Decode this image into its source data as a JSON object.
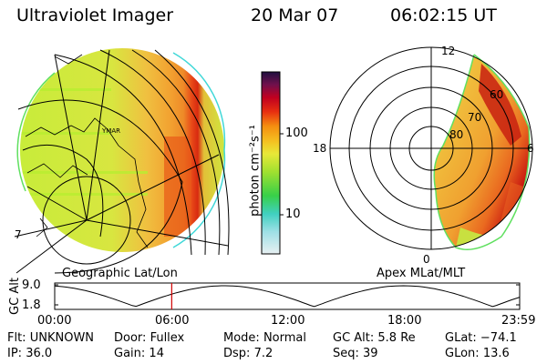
{
  "header": {
    "title": "Ultraviolet Imager",
    "date": "20 Mar 07",
    "time": "06:02:15 UT"
  },
  "left_panel": {
    "caption": "Geographic Lat/Lon",
    "map_label": "YMAR",
    "edge_label": "7"
  },
  "colorbar": {
    "unit_label": "photon cm⁻²s⁻¹",
    "ticks": [
      "100",
      "10"
    ]
  },
  "right_panel": {
    "caption": "Apex MLat/MLT",
    "mlt_labels": {
      "top": "12",
      "left": "18",
      "right": "6",
      "bottom": "0"
    },
    "mlat_labels": [
      "60",
      "70",
      "80"
    ]
  },
  "timeline": {
    "axis_label": "GC Alt",
    "y_ticks": [
      "9.0",
      "1.8"
    ],
    "x_ticks": [
      "00:00",
      "06:00",
      "12:00",
      "18:00",
      "23:59"
    ],
    "current_time_hours": 6.04
  },
  "info": {
    "row1": [
      {
        "label": "Flt:",
        "value": "UNKNOWN"
      },
      {
        "label": "Door:",
        "value": "Fullex"
      },
      {
        "label": "Mode:",
        "value": "Normal"
      },
      {
        "label": "GC Alt:",
        "value": "5.8 Re"
      },
      {
        "label": "GLat:",
        "value": "−74.1"
      }
    ],
    "row2": [
      {
        "label": "IP:",
        "value": "36.0"
      },
      {
        "label": "Gain:",
        "value": "14"
      },
      {
        "label": "Dsp:",
        "value": "7.2"
      },
      {
        "label": "Seq:",
        "value": "39"
      },
      {
        "label": "GLon:",
        "value": "13.6"
      }
    ]
  },
  "colors": {
    "grid": "#000000",
    "marker": "#d00000",
    "background": "#ffffff"
  }
}
